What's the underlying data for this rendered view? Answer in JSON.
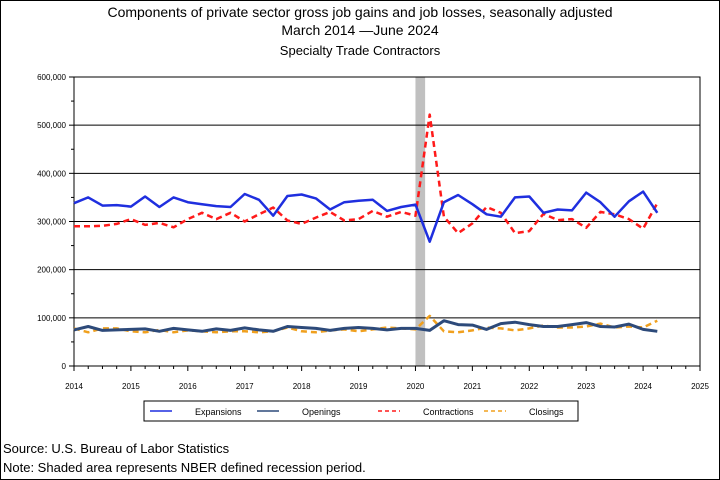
{
  "header": {
    "title_line1": "Components of private sector gross job gains and job losses, seasonally adjusted",
    "title_line2": "March 2014 —June 2024",
    "title_line3": "Specialty Trade Contractors"
  },
  "footer": {
    "source": "Source: U.S. Bureau of Labor Statistics",
    "note": "Note: Shaded area represents NBER defined recession period."
  },
  "chart_data": {
    "type": "line",
    "title": "Components of private sector gross job gains and job losses, seasonally adjusted",
    "xlabel": "",
    "ylabel": "",
    "xlim": [
      2014,
      2025
    ],
    "ylim": [
      0,
      600000
    ],
    "x_ticks": [
      "2014",
      "2015",
      "2016",
      "2017",
      "2018",
      "2019",
      "2020",
      "2021",
      "2022",
      "2023",
      "2024",
      "2025"
    ],
    "y_ticks": [
      "0",
      "100,000",
      "200,000",
      "300,000",
      "400,000",
      "500,000",
      "600,000"
    ],
    "grid": "horizontal",
    "legend_position": "bottom",
    "recession": {
      "start": 2020.0,
      "end": 2020.17,
      "color": "#c0c0c0"
    },
    "x": [
      2014.0,
      2014.25,
      2014.5,
      2014.75,
      2015.0,
      2015.25,
      2015.5,
      2015.75,
      2016.0,
      2016.25,
      2016.5,
      2016.75,
      2017.0,
      2017.25,
      2017.5,
      2017.75,
      2018.0,
      2018.25,
      2018.5,
      2018.75,
      2019.0,
      2019.25,
      2019.5,
      2019.75,
      2020.0,
      2020.25,
      2020.5,
      2020.75,
      2021.0,
      2021.25,
      2021.5,
      2021.75,
      2022.0,
      2022.25,
      2022.5,
      2022.75,
      2023.0,
      2023.25,
      2023.5,
      2023.75,
      2024.0,
      2024.25
    ],
    "series": [
      {
        "name": "Expansions",
        "color": "#1f2fdf",
        "dash": "solid",
        "values": [
          338000,
          350000,
          333000,
          334000,
          331000,
          352000,
          330000,
          350000,
          340000,
          336000,
          332000,
          330000,
          357000,
          345000,
          312000,
          353000,
          356000,
          348000,
          325000,
          340000,
          343000,
          345000,
          322000,
          330000,
          335000,
          258000,
          340000,
          355000,
          336000,
          315000,
          310000,
          350000,
          352000,
          318000,
          325000,
          323000,
          360000,
          340000,
          310000,
          342000,
          362000,
          318000
        ]
      },
      {
        "name": "Openings",
        "color": "#2d4a7a",
        "dash": "solid",
        "values": [
          75000,
          82000,
          74000,
          75000,
          76000,
          77000,
          72000,
          78000,
          75000,
          72000,
          77000,
          74000,
          79000,
          75000,
          72000,
          82000,
          80000,
          78000,
          74000,
          78000,
          80000,
          78000,
          75000,
          78000,
          78000,
          74000,
          94000,
          86000,
          85000,
          76000,
          88000,
          91000,
          86000,
          82000,
          82000,
          86000,
          90000,
          82000,
          81000,
          87000,
          76000,
          72000
        ]
      },
      {
        "name": "Contractions",
        "color": "#ff1a1a",
        "dash": "6,4",
        "values": [
          290000,
          290000,
          291000,
          295000,
          305000,
          293000,
          297000,
          288000,
          305000,
          318000,
          305000,
          318000,
          300000,
          315000,
          329000,
          302000,
          295000,
          308000,
          320000,
          302000,
          305000,
          322000,
          310000,
          320000,
          312000,
          522000,
          310000,
          276000,
          296000,
          330000,
          318000,
          276000,
          280000,
          316000,
          303000,
          305000,
          287000,
          320000,
          315000,
          305000,
          285000,
          338000
        ]
      },
      {
        "name": "Closings",
        "color": "#f0a01e",
        "dash": "6,4",
        "values": [
          78000,
          70000,
          78000,
          78000,
          72000,
          70000,
          75000,
          70000,
          74000,
          72000,
          70000,
          72000,
          72000,
          70000,
          72000,
          80000,
          72000,
          70000,
          74000,
          76000,
          72000,
          76000,
          80000,
          78000,
          76000,
          104000,
          72000,
          70000,
          74000,
          80000,
          78000,
          74000,
          78000,
          84000,
          80000,
          80000,
          82000,
          88000,
          80000,
          82000,
          80000,
          94000
        ]
      }
    ]
  }
}
